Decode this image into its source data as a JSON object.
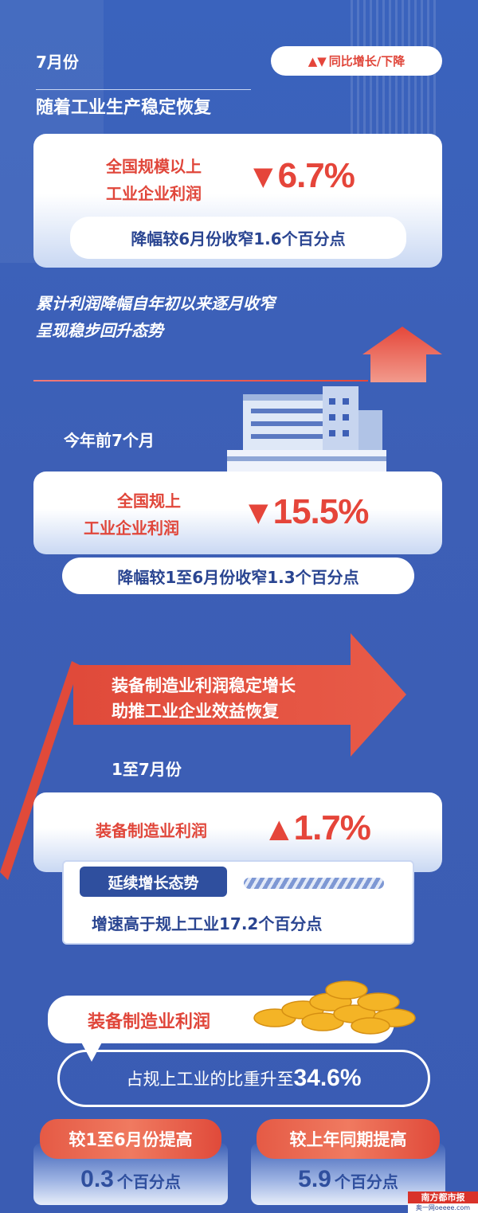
{
  "colors": {
    "background": "#3a5fb5",
    "accent_red": "#e0463a",
    "navy": "#2a4591"
  },
  "section1": {
    "period": "7月份",
    "legend": {
      "icons": [
        "triangle-up-icon",
        "triangle-down-icon"
      ],
      "arrows": "▲▼",
      "label": "同比增长/下降"
    },
    "heading": "随着工业生产稳定恢复",
    "card": {
      "line1": "全国规模以上",
      "line2": "工业企业利润",
      "direction": "▼",
      "value": "6.7%"
    },
    "pill": "降幅较6月份收窄1.6个百分点",
    "note_line1": "累计利润降幅自年初以来逐月收窄",
    "note_line2": "呈现稳步回升态势"
  },
  "section2": {
    "period": "今年前7个月",
    "card": {
      "line1": "全国规上",
      "line2": "工业企业利润",
      "direction": "▼",
      "value": "15.5%"
    },
    "pill": "降幅较1至6月份收窄1.3个百分点"
  },
  "section3": {
    "arrow_line1": "装备制造业利润稳定增长",
    "arrow_line2": "助推工业企业效益恢复",
    "period": "1至7月份",
    "card": {
      "label": "装备制造业利润",
      "direction": "▲",
      "value": "1.7%"
    },
    "tag": "延续增长态势",
    "detail": "增速高于规上工业17.2个百分点"
  },
  "section4": {
    "bubble": "装备制造业利润",
    "share_text": "占规上工业的比重升至",
    "share_value": "34.6%",
    "compare": [
      {
        "label": "较1至6月份提高",
        "value": "0.3",
        "unit": "个百分点"
      },
      {
        "label": "较上年同期提高",
        "value": "5.9",
        "unit": "个百分点"
      }
    ]
  },
  "watermark": {
    "line1": "南方都市报",
    "line2": "奥一网oeeee.com"
  }
}
